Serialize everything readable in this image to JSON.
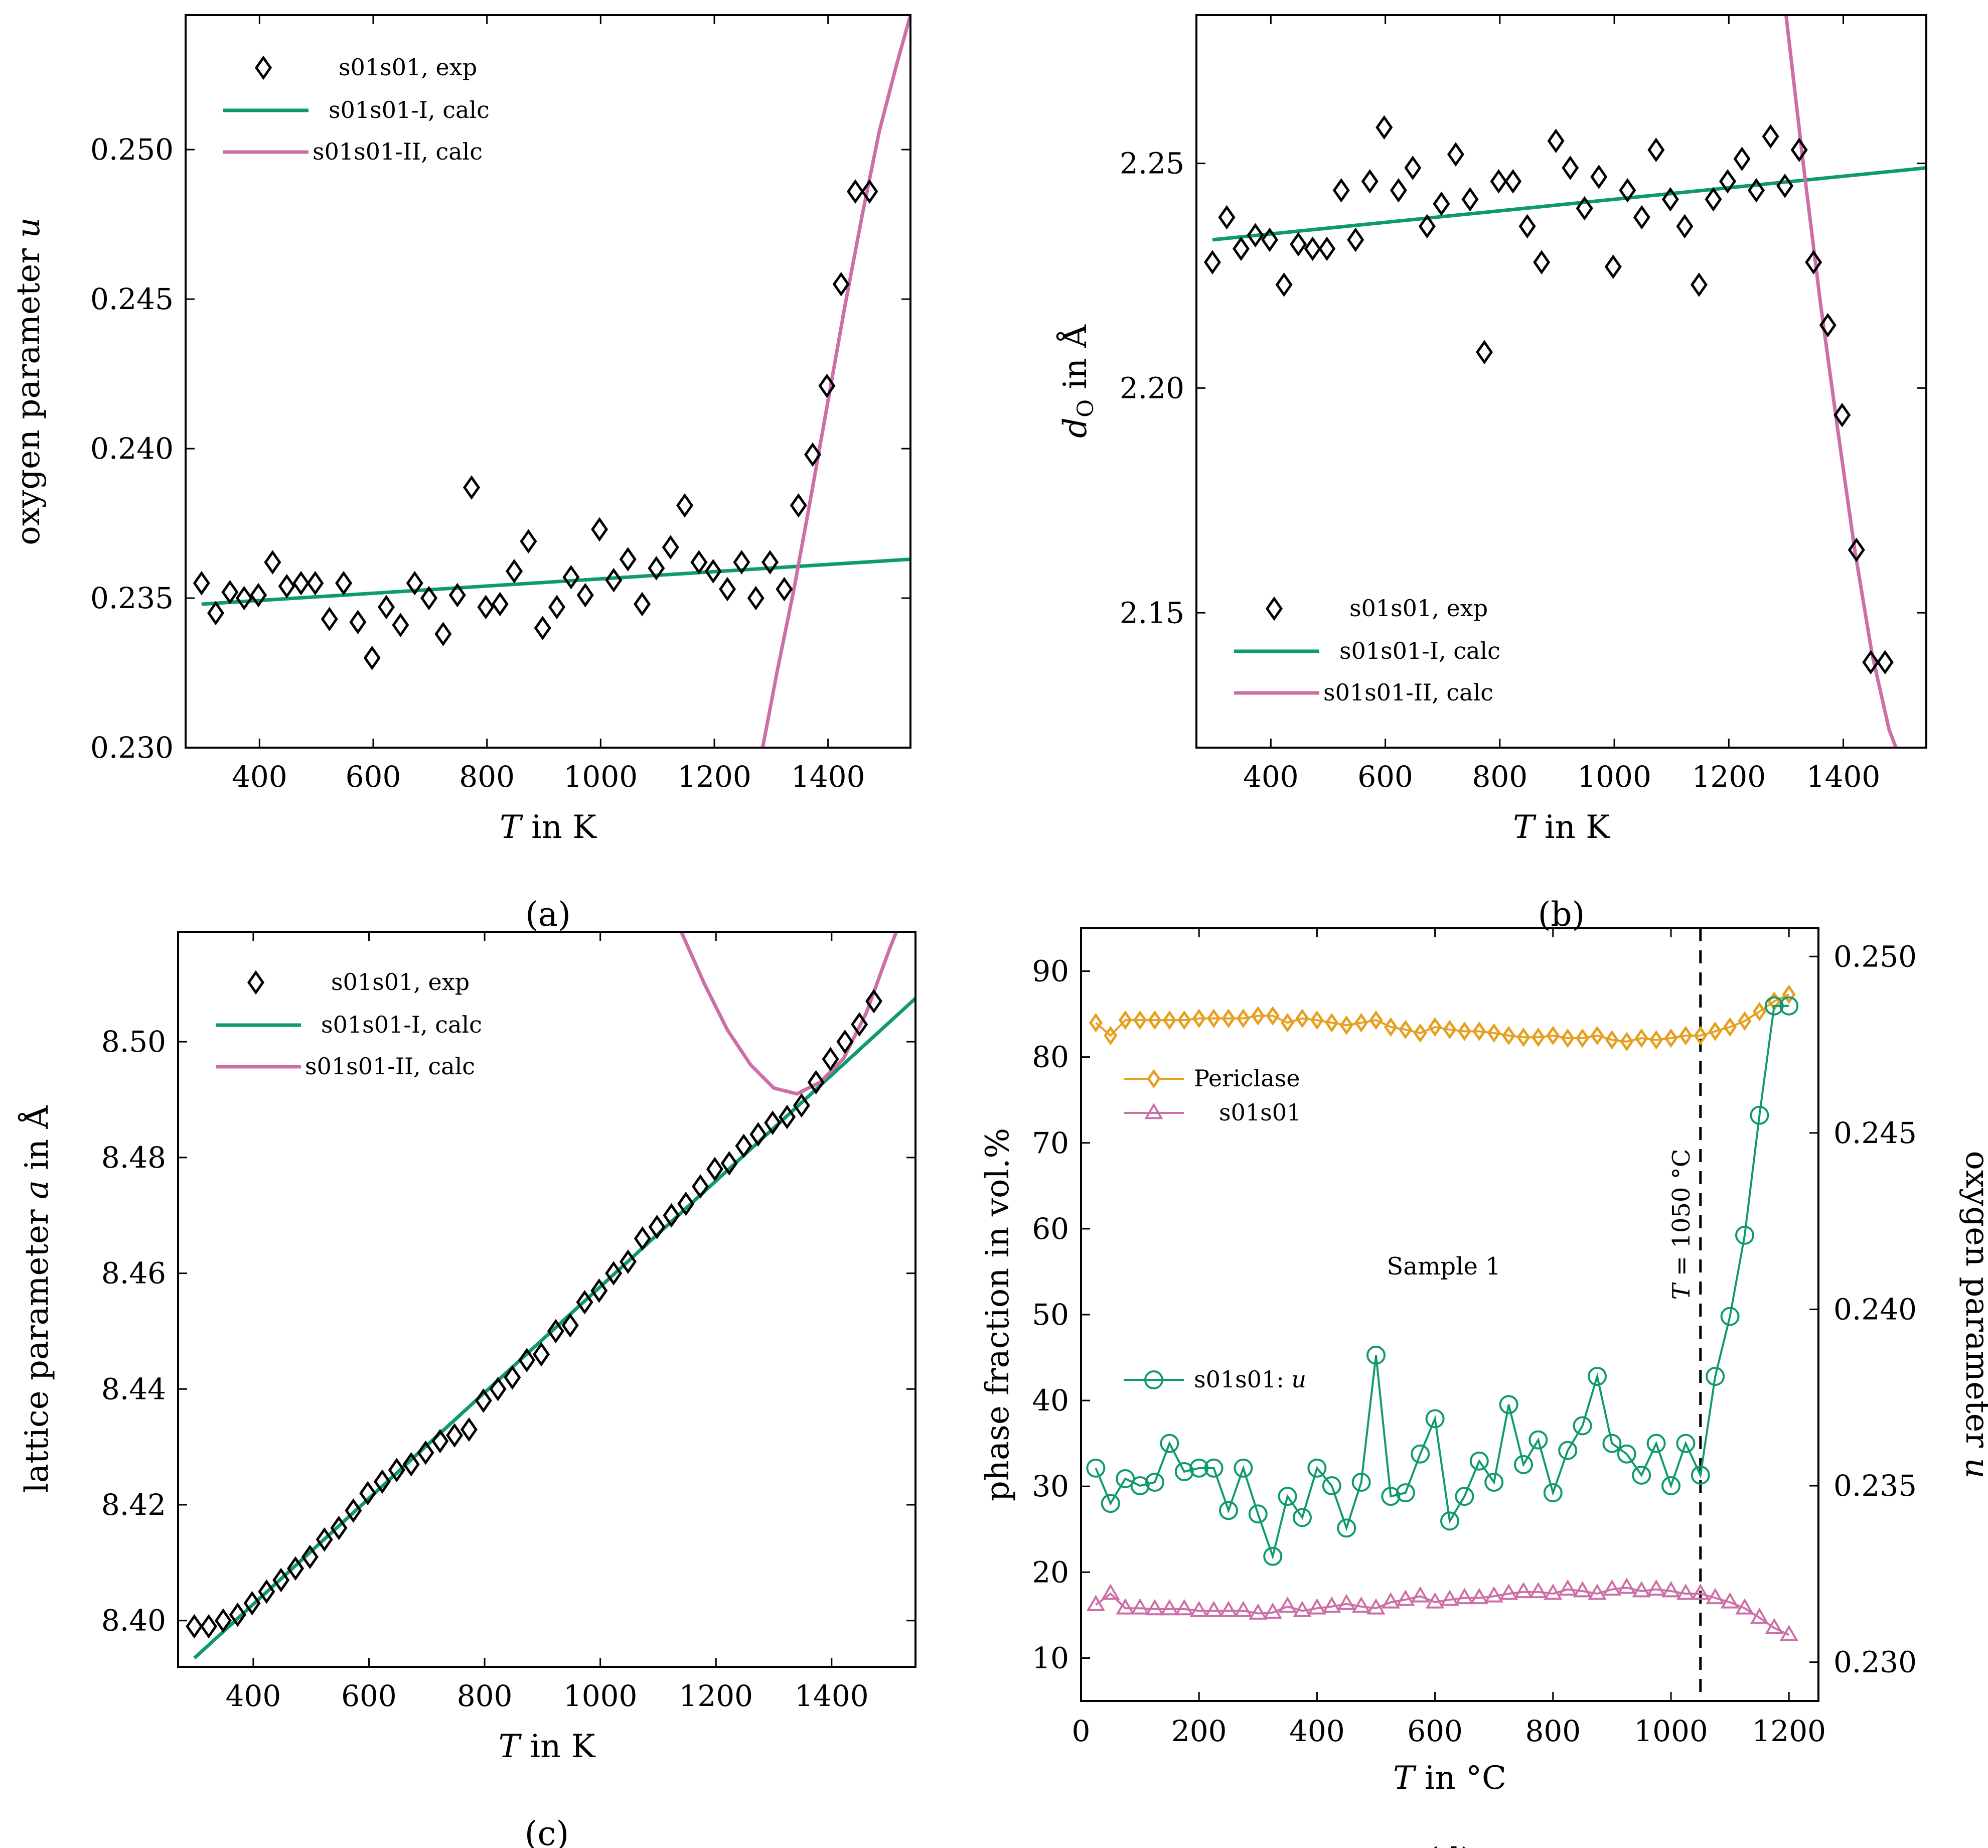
{
  "colors": {
    "green": "#0f9a6e",
    "pink": "#cc6fa7",
    "orange": "#e6a020",
    "black": "#000000"
  },
  "chart_data": [
    {
      "id": "a",
      "type": "scatter+line",
      "caption": "(a)",
      "xlabel": "T in K",
      "ylabel": "oxygen parameter u",
      "xlim": [
        270,
        1545
      ],
      "ylim": [
        0.23,
        0.2545
      ],
      "xticks": [
        400,
        600,
        800,
        1000,
        1200,
        1400
      ],
      "yticks": [
        0.23,
        0.235,
        0.24,
        0.245,
        0.25
      ],
      "ytick_labels": [
        "0.230",
        "0.235",
        "0.240",
        "0.245",
        "0.250"
      ],
      "legend": [
        "s01s01, exp",
        "s01s01-I, calc",
        "s01s01-II, calc"
      ],
      "exp": {
        "x": [
          298,
          323,
          348,
          373,
          398,
          423,
          448,
          473,
          498,
          523,
          548,
          573,
          598,
          623,
          648,
          673,
          698,
          723,
          748,
          773,
          798,
          823,
          848,
          873,
          898,
          923,
          948,
          973,
          998,
          1023,
          1048,
          1073,
          1098,
          1123,
          1148,
          1173,
          1198,
          1223,
          1248,
          1273,
          1298,
          1323,
          1348,
          1373,
          1398,
          1423,
          1448,
          1473
        ],
        "y": [
          0.2355,
          0.2345,
          0.2352,
          0.235,
          0.2351,
          0.2362,
          0.2354,
          0.2355,
          0.2355,
          0.2343,
          0.2355,
          0.2342,
          0.233,
          0.2347,
          0.2341,
          0.2355,
          0.235,
          0.2338,
          0.2351,
          0.2387,
          0.2347,
          0.2348,
          0.2359,
          0.2369,
          0.234,
          0.2347,
          0.2357,
          0.2351,
          0.2373,
          0.2356,
          0.2363,
          0.2348,
          0.236,
          0.2367,
          0.2381,
          0.2362,
          0.2359,
          0.2353,
          0.2362,
          0.235,
          0.2362,
          0.2353,
          0.2381,
          0.2398,
          0.2421,
          0.2455,
          0.2486,
          0.2486
        ]
      },
      "calc_I": {
        "x": [
          298,
          1545
        ],
        "y": [
          0.2348,
          0.2363
        ]
      },
      "calc_II": {
        "x": [
          1285,
          1310,
          1340,
          1370,
          1400,
          1430,
          1460,
          1490,
          1520,
          1545
        ],
        "y": [
          0.23,
          0.2325,
          0.2353,
          0.2384,
          0.2416,
          0.2448,
          0.2478,
          0.2506,
          0.2528,
          0.2545
        ]
      }
    },
    {
      "id": "b",
      "type": "scatter+line",
      "caption": "(b)",
      "xlabel": "T in K",
      "ylabel": "d_O in Å",
      "xlabel_text": "in K",
      "ylabel_sub": "O",
      "ylabel_rest": " in Å",
      "xlim": [
        270,
        1545
      ],
      "ylim": [
        2.12,
        2.283
      ],
      "xticks": [
        400,
        600,
        800,
        1000,
        1200,
        1400
      ],
      "yticks": [
        2.15,
        2.2,
        2.25
      ],
      "ytick_labels": [
        "2.15",
        "2.20",
        "2.25"
      ],
      "legend": [
        "s01s01, exp",
        "s01s01-I, calc",
        "s01s01-II, calc"
      ],
      "exp": {
        "x": [
          298,
          323,
          348,
          373,
          398,
          423,
          448,
          473,
          498,
          523,
          548,
          573,
          598,
          623,
          648,
          673,
          698,
          723,
          748,
          773,
          798,
          823,
          848,
          873,
          898,
          923,
          948,
          973,
          998,
          1023,
          1048,
          1073,
          1098,
          1123,
          1148,
          1173,
          1198,
          1223,
          1248,
          1273,
          1298,
          1323,
          1348,
          1373,
          1398,
          1423,
          1448,
          1473
        ],
        "y": [
          2.228,
          2.238,
          2.231,
          2.234,
          2.233,
          2.223,
          2.232,
          2.231,
          2.231,
          2.244,
          2.233,
          2.246,
          2.258,
          2.244,
          2.249,
          2.236,
          2.241,
          2.252,
          2.242,
          2.208,
          2.246,
          2.246,
          2.236,
          2.228,
          2.255,
          2.249,
          2.24,
          2.247,
          2.227,
          2.244,
          2.238,
          2.253,
          2.242,
          2.236,
          2.223,
          2.242,
          2.246,
          2.251,
          2.244,
          2.256,
          2.245,
          2.253,
          2.228,
          2.214,
          2.194,
          2.164,
          2.139,
          2.139
        ]
      },
      "calc_I": {
        "x": [
          298,
          1545
        ],
        "y": [
          2.233,
          2.249
        ]
      },
      "calc_II": {
        "x": [
          1300,
          1330,
          1360,
          1390,
          1420,
          1450,
          1480,
          1492
        ],
        "y": [
          2.283,
          2.25,
          2.219,
          2.191,
          2.164,
          2.141,
          2.124,
          2.12
        ]
      }
    },
    {
      "id": "c",
      "type": "scatter+line",
      "caption": "(c)",
      "xlabel": "T in K",
      "ylabel": "lattice parameter a in Å",
      "ylabel_pre": "lattice parameter ",
      "ylabel_var": "a",
      "ylabel_post": " in Å",
      "xlim": [
        270,
        1545
      ],
      "ylim": [
        8.392,
        8.519
      ],
      "xticks": [
        400,
        600,
        800,
        1000,
        1200,
        1400
      ],
      "yticks": [
        8.4,
        8.42,
        8.44,
        8.46,
        8.48,
        8.5
      ],
      "ytick_labels": [
        "8.40",
        "8.42",
        "8.44",
        "8.46",
        "8.48",
        "8.50"
      ],
      "legend": [
        "s01s01, exp",
        "s01s01-I, calc",
        "s01s01-II, calc"
      ],
      "exp": {
        "x": [
          298,
          323,
          348,
          373,
          398,
          423,
          448,
          473,
          498,
          523,
          548,
          573,
          598,
          623,
          648,
          673,
          698,
          723,
          748,
          773,
          798,
          823,
          848,
          873,
          898,
          923,
          948,
          973,
          998,
          1023,
          1048,
          1073,
          1098,
          1123,
          1148,
          1173,
          1198,
          1223,
          1248,
          1273,
          1298,
          1323,
          1348,
          1373,
          1398,
          1423,
          1448,
          1473
        ],
        "y": [
          8.399,
          8.399,
          8.4,
          8.401,
          8.403,
          8.405,
          8.407,
          8.409,
          8.411,
          8.414,
          8.416,
          8.419,
          8.422,
          8.424,
          8.426,
          8.427,
          8.429,
          8.431,
          8.432,
          8.433,
          8.438,
          8.44,
          8.442,
          8.445,
          8.446,
          8.45,
          8.451,
          8.455,
          8.457,
          8.46,
          8.462,
          8.466,
          8.468,
          8.47,
          8.472,
          8.475,
          8.478,
          8.479,
          8.482,
          8.484,
          8.486,
          8.487,
          8.489,
          8.493,
          8.497,
          8.5,
          8.503,
          8.507
        ]
      },
      "calc_I": {
        "x": [
          298,
          1545
        ],
        "y": [
          8.3935,
          8.5075
        ]
      },
      "calc_II": {
        "x": [
          1140,
          1180,
          1220,
          1260,
          1300,
          1340,
          1380,
          1420,
          1460,
          1500,
          1512
        ],
        "y": [
          8.519,
          8.51,
          8.502,
          8.496,
          8.492,
          8.491,
          8.493,
          8.497,
          8.505,
          8.516,
          8.519
        ]
      }
    },
    {
      "id": "d",
      "type": "line",
      "caption": "(d)",
      "xlabel": "T in °C",
      "ylabel": "phase fraction in vol.%",
      "y2label": "oxygen parameter u",
      "xlim": [
        0,
        1250
      ],
      "ylim": [
        5,
        95
      ],
      "y2lim": [
        0.2289,
        0.2508
      ],
      "xticks": [
        0,
        200,
        400,
        600,
        800,
        1000,
        1200
      ],
      "yticks": [
        10,
        20,
        30,
        40,
        50,
        60,
        70,
        80,
        90
      ],
      "y2ticks": [
        0.23,
        0.235,
        0.24,
        0.245,
        0.25
      ],
      "y2tick_labels": [
        "0.230",
        "0.235",
        "0.240",
        "0.245",
        "0.250"
      ],
      "annotations": [
        "Sample 1",
        "T = 1050 °C"
      ],
      "vline_x": 1050,
      "x": [
        25,
        50,
        75,
        100,
        125,
        150,
        175,
        200,
        225,
        250,
        275,
        300,
        325,
        350,
        375,
        400,
        425,
        450,
        475,
        500,
        525,
        550,
        575,
        600,
        625,
        650,
        675,
        700,
        725,
        750,
        775,
        800,
        825,
        850,
        875,
        900,
        925,
        950,
        975,
        1000,
        1025,
        1050,
        1075,
        1100,
        1125,
        1150,
        1175,
        1200
      ],
      "series": [
        {
          "name": "Periclase",
          "axis": "left",
          "marker": "diamond",
          "values": [
            84,
            82.5,
            84.3,
            84.3,
            84.3,
            84.3,
            84.3,
            84.5,
            84.5,
            84.5,
            84.5,
            84.8,
            84.8,
            84,
            84.5,
            84.3,
            84,
            83.7,
            84,
            84.3,
            83.5,
            83.2,
            82.8,
            83.5,
            83.2,
            83,
            83,
            82.8,
            82.5,
            82.3,
            82.3,
            82.5,
            82.2,
            82.2,
            82.5,
            82,
            81.8,
            82.2,
            82,
            82.2,
            82.5,
            82.5,
            83,
            83.5,
            84.2,
            85.3,
            86.5,
            87.3
          ]
        },
        {
          "name": "s01s01",
          "axis": "left",
          "marker": "triangle",
          "values": [
            16.2,
            17.5,
            15.8,
            15.8,
            15.7,
            15.7,
            15.7,
            15.5,
            15.5,
            15.5,
            15.5,
            15.2,
            15.3,
            16,
            15.5,
            15.8,
            16,
            16.3,
            16,
            15.8,
            16.5,
            16.8,
            17.2,
            16.5,
            16.8,
            17,
            17,
            17.2,
            17.5,
            17.7,
            17.7,
            17.5,
            18,
            17.8,
            17.5,
            18,
            18.2,
            17.8,
            18,
            17.8,
            17.5,
            17.5,
            17,
            16.5,
            15.8,
            14.7,
            13.5,
            12.7
          ]
        },
        {
          "name": "s01s01: u",
          "axis": "right",
          "marker": "circle",
          "values": [
            0.2355,
            0.2345,
            0.2352,
            0.235,
            0.2351,
            0.2362,
            0.2354,
            0.2355,
            0.2355,
            0.2343,
            0.2355,
            0.2342,
            0.233,
            0.2347,
            0.2341,
            0.2355,
            0.235,
            0.2338,
            0.2351,
            0.2387,
            0.2347,
            0.2348,
            0.2359,
            0.2369,
            0.234,
            0.2347,
            0.2357,
            0.2351,
            0.2373,
            0.2356,
            0.2363,
            0.2348,
            0.236,
            0.2367,
            0.2381,
            0.2362,
            0.2359,
            0.2353,
            0.2362,
            0.235,
            0.2362,
            0.2353,
            0.2381,
            0.2398,
            0.2421,
            0.2455,
            0.2486,
            0.2486
          ]
        }
      ]
    }
  ]
}
